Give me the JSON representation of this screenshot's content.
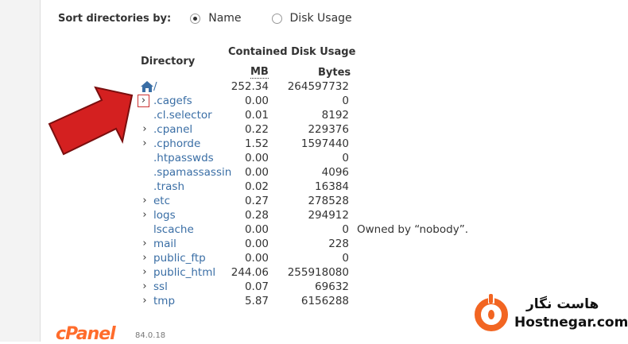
{
  "sort": {
    "label": "Sort directories by:",
    "options": [
      {
        "label": "Name",
        "selected": true
      },
      {
        "label": "Disk Usage",
        "selected": false
      }
    ]
  },
  "headers": {
    "directory": "Directory",
    "contained": "Contained Disk Usage",
    "mb": "MB",
    "bytes": "Bytes"
  },
  "rows": [
    {
      "name": "/",
      "mb": "252.34",
      "bytes": "264597732",
      "icon": "home-icon",
      "expand": false
    },
    {
      "name": ".cagefs",
      "mb": "0.00",
      "bytes": "0",
      "expand": true,
      "highlight": true
    },
    {
      "name": ".cl.selector",
      "mb": "0.01",
      "bytes": "8192",
      "expand": false
    },
    {
      "name": ".cpanel",
      "mb": "0.22",
      "bytes": "229376",
      "expand": true
    },
    {
      "name": ".cphorde",
      "mb": "1.52",
      "bytes": "1597440",
      "expand": true
    },
    {
      "name": ".htpasswds",
      "mb": "0.00",
      "bytes": "0",
      "expand": false
    },
    {
      "name": ".spamassassin",
      "mb": "0.00",
      "bytes": "4096",
      "expand": false
    },
    {
      "name": ".trash",
      "mb": "0.02",
      "bytes": "16384",
      "expand": false
    },
    {
      "name": "etc",
      "mb": "0.27",
      "bytes": "278528",
      "expand": true
    },
    {
      "name": "logs",
      "mb": "0.28",
      "bytes": "294912",
      "expand": true
    },
    {
      "name": "lscache",
      "mb": "0.00",
      "bytes": "0",
      "expand": false,
      "note": "Owned by “nobody”."
    },
    {
      "name": "mail",
      "mb": "0.00",
      "bytes": "228",
      "expand": true
    },
    {
      "name": "public_ftp",
      "mb": "0.00",
      "bytes": "0",
      "expand": true
    },
    {
      "name": "public_html",
      "mb": "244.06",
      "bytes": "255918080",
      "expand": true
    },
    {
      "name": "ssl",
      "mb": "0.07",
      "bytes": "69632",
      "expand": true
    },
    {
      "name": "tmp",
      "mb": "5.87",
      "bytes": "6156288",
      "expand": true
    }
  ],
  "footer": {
    "brand": "cPanel",
    "version": "84.0.18"
  },
  "watermark": {
    "fa": "هاست نگار",
    "en": "Hostnegar.com",
    "accent": "#f26522"
  },
  "colors": {
    "link": "#3a6ea5",
    "arrow": "#d42020"
  }
}
